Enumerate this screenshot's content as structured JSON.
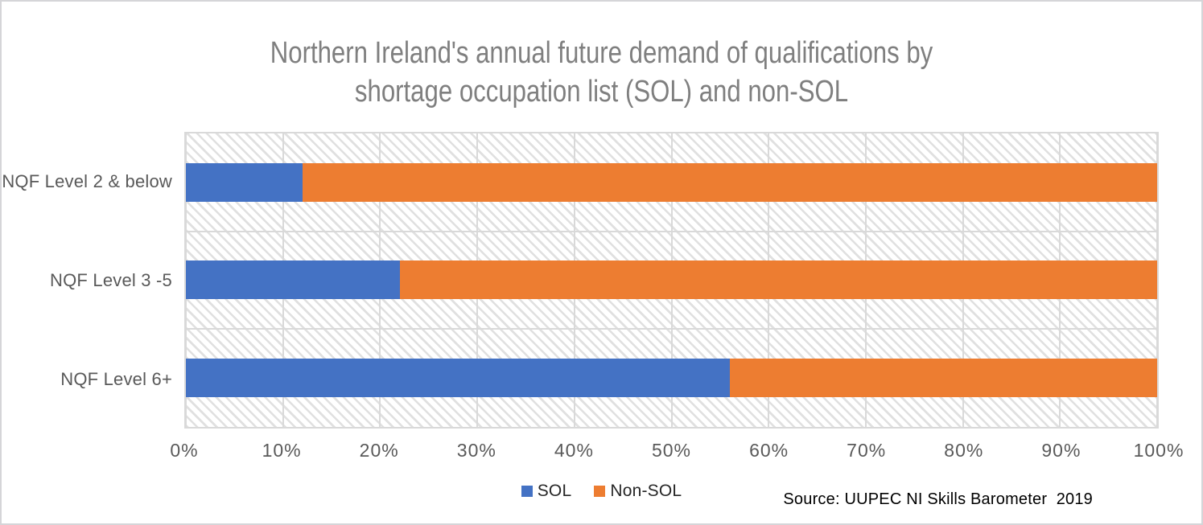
{
  "title": "Northern Ireland's annual future demand of qualifications by shortage occupation list (SOL) and non-SOL",
  "source_note": "Source: UUPEC NI Skills Barometer  2019",
  "colors": {
    "sol": "#4472C4",
    "non_sol": "#ED7D31",
    "gridline": "#D9D9D9",
    "title_text": "#7F7F7F",
    "axis_text": "#595959"
  },
  "legend": {
    "position": "bottom-center",
    "items": [
      {
        "label": "SOL",
        "color": "#4472C4"
      },
      {
        "label": "Non-SOL",
        "color": "#ED7D31"
      }
    ]
  },
  "chart_data": {
    "type": "bar",
    "orientation": "horizontal",
    "stacked": true,
    "title": "Northern Ireland's annual future demand of qualifications by shortage occupation list (SOL) and non-SOL",
    "categories": [
      "NQF Level 2 & below",
      "NQF Level 3 -5",
      "NQF Level 6+"
    ],
    "series": [
      {
        "name": "SOL",
        "color": "#4472C4",
        "values": [
          12,
          22,
          56
        ]
      },
      {
        "name": "Non-SOL",
        "color": "#ED7D31",
        "values": [
          88,
          78,
          44
        ]
      }
    ],
    "xlabel": "",
    "ylabel": "",
    "xlim": [
      0,
      100
    ],
    "x_tick_step": 10,
    "x_ticks": [
      "0%",
      "10%",
      "20%",
      "30%",
      "40%",
      "50%",
      "60%",
      "70%",
      "80%",
      "90%",
      "100%"
    ],
    "grid": true,
    "plot_background": "light-diagonal-hatch",
    "legend_position": "bottom"
  }
}
